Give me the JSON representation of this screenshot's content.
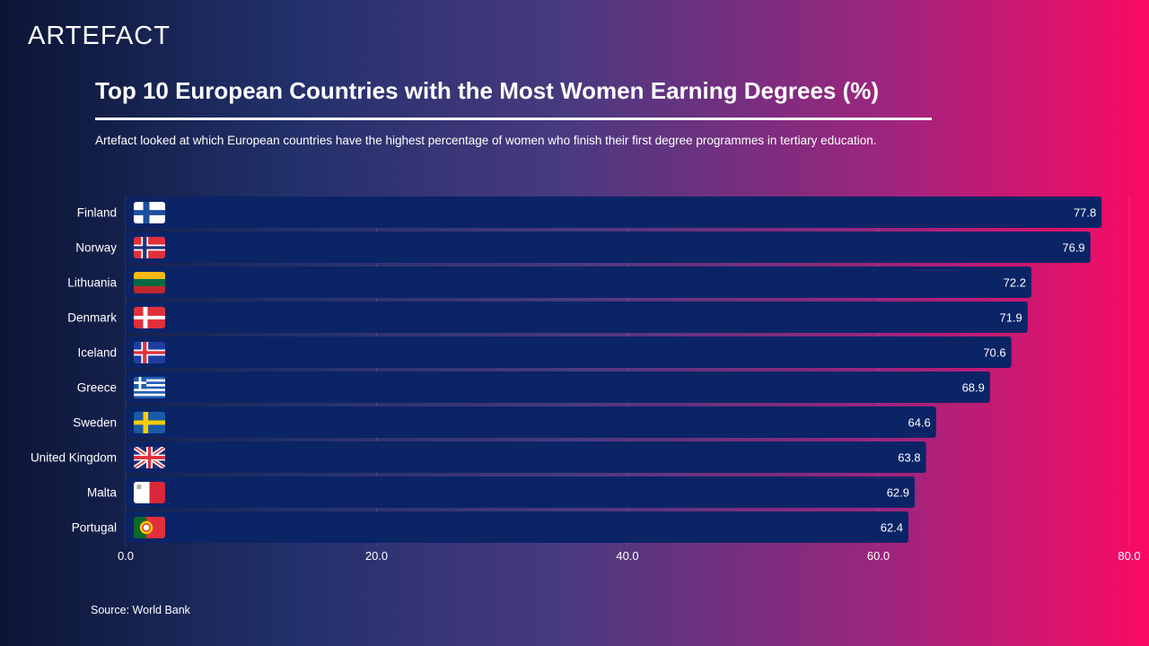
{
  "brand": {
    "logo": "ARTEFACT"
  },
  "header": {
    "title": "Top 10 European Countries with the Most Women Earning Degrees (%)",
    "subtitle": "Artefact looked at which European countries have the highest percentage of women who finish their first degree programmes in tertiary education."
  },
  "footer": {
    "source": "Source: World Bank"
  },
  "colors": {
    "bar": "#0b2466",
    "accent": "#fb0a64"
  },
  "chart_data": {
    "type": "bar",
    "orientation": "horizontal",
    "categories": [
      "Finland",
      "Norway",
      "Lithuania",
      "Denmark",
      "Iceland",
      "Greece",
      "Sweden",
      "United Kingdom",
      "Malta",
      "Portugal"
    ],
    "flag_icons": [
      "finland-flag-icon",
      "norway-flag-icon",
      "lithuania-flag-icon",
      "denmark-flag-icon",
      "iceland-flag-icon",
      "greece-flag-icon",
      "sweden-flag-icon",
      "united-kingdom-flag-icon",
      "malta-flag-icon",
      "portugal-flag-icon"
    ],
    "values": [
      77.8,
      76.9,
      72.2,
      71.9,
      70.6,
      68.9,
      64.6,
      63.8,
      62.9,
      62.4
    ],
    "value_labels": [
      "77.8",
      "76.9",
      "72.2",
      "71.9",
      "70.6",
      "68.9",
      "64.6",
      "63.8",
      "62.9",
      "62.4"
    ],
    "xlim": [
      0,
      80
    ],
    "xticks": [
      "0.0",
      "20.0",
      "40.0",
      "60.0",
      "80.0"
    ],
    "xtick_values": [
      0,
      20,
      40,
      60,
      80
    ],
    "grid": true,
    "legend": "none"
  }
}
